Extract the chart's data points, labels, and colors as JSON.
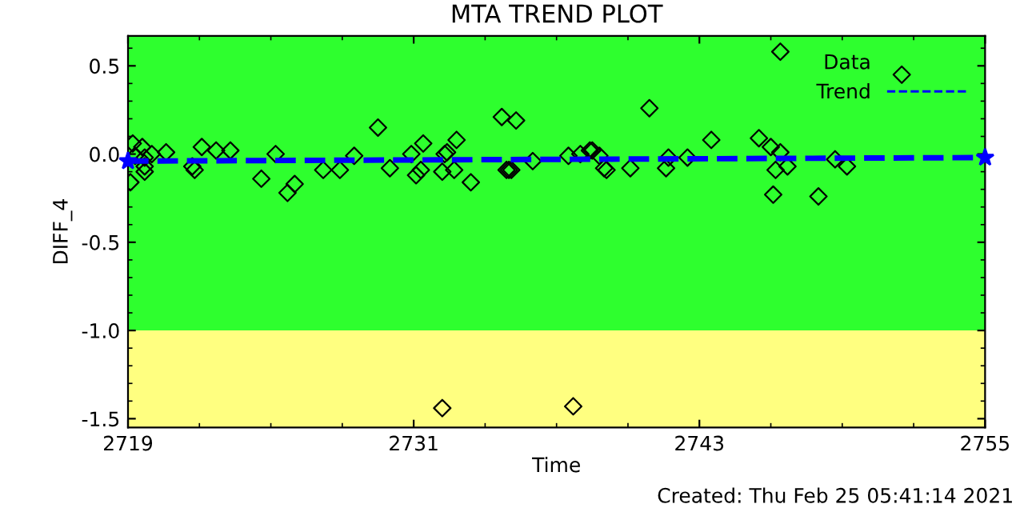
{
  "chart_data": {
    "type": "scatter",
    "title": "MTA TREND PLOT",
    "xlabel": "Time",
    "ylabel": "DIFF_4",
    "annotations": [
      "Created: Thu Feb 25 05:41:14 2021"
    ],
    "xlim": [
      2719,
      2755
    ],
    "xticks": [
      2719,
      2731,
      2743,
      2755
    ],
    "ylim": [
      -1.55,
      0.67
    ],
    "yticks": [
      {
        "value": 0.5,
        "label": "0.5"
      },
      {
        "value": 0.0,
        "label": "0.0"
      },
      {
        "value": -0.5,
        "label": "-0.5"
      },
      {
        "value": -1.0,
        "label": "-1.0"
      },
      {
        "value": -1.5,
        "label": "-1.5"
      }
    ],
    "bands": [
      {
        "axis": "y",
        "from": -1.0,
        "to": 0.67,
        "color": "#2eff2e"
      },
      {
        "axis": "y",
        "from": -1.55,
        "to": -1.0,
        "color": "#ffff80"
      }
    ],
    "grid": false,
    "legend": "top right",
    "marker": "diamond",
    "series": [
      {
        "name": "Data",
        "color": "#000000",
        "x": [
          2719.1,
          2719.2,
          2719.3,
          2719.6,
          2719.7,
          2719.7,
          2719.7,
          2720.0,
          2720.6,
          2721.7,
          2721.8,
          2722.1,
          2722.7,
          2723.3,
          2724.6,
          2725.2,
          2725.7,
          2726.0,
          2727.2,
          2727.9,
          2728.5,
          2729.5,
          2730.0,
          2730.9,
          2731.1,
          2731.3,
          2731.4,
          2732.2,
          2732.3,
          2732.4,
          2732.7,
          2732.8,
          2733.4,
          2734.7,
          2735.3,
          2734.9,
          2735.0,
          2735.1,
          2736.0,
          2737.5,
          2738.0,
          2738.4,
          2738.5,
          2738.8,
          2739.0,
          2739.1,
          2740.1,
          2740.9,
          2741.6,
          2741.7,
          2742.5,
          2743.5,
          2745.5,
          2746.0,
          2746.1,
          2746.2,
          2746.4,
          2746.4,
          2746.7,
          2748.0,
          2748.7,
          2749.2,
          2751.5,
          2732.2,
          2737.7
        ],
        "values": [
          -0.16,
          0.06,
          -0.01,
          0.04,
          -0.02,
          -0.07,
          -0.1,
          0.0,
          0.01,
          -0.07,
          -0.09,
          0.04,
          0.02,
          0.02,
          -0.14,
          0.0,
          -0.22,
          -0.17,
          -0.09,
          -0.09,
          -0.01,
          0.15,
          -0.08,
          0.0,
          -0.12,
          -0.09,
          0.06,
          -0.1,
          0.0,
          0.01,
          -0.09,
          0.08,
          -0.16,
          0.21,
          0.19,
          -0.09,
          -0.09,
          -0.09,
          -0.04,
          -0.01,
          0.0,
          0.02,
          0.02,
          -0.01,
          -0.08,
          -0.09,
          -0.08,
          0.26,
          -0.08,
          -0.02,
          -0.02,
          0.08,
          0.09,
          0.04,
          -0.23,
          -0.09,
          0.58,
          0.01,
          -0.07,
          -0.24,
          -0.03,
          -0.07,
          0.45,
          -1.44,
          -1.43
        ]
      },
      {
        "name": "Trend",
        "color": "#0000ff",
        "type": "line",
        "line_style": "dashed",
        "marker": "star",
        "x": [
          2719,
          2755
        ],
        "values": [
          -0.04,
          -0.02
        ]
      }
    ]
  }
}
